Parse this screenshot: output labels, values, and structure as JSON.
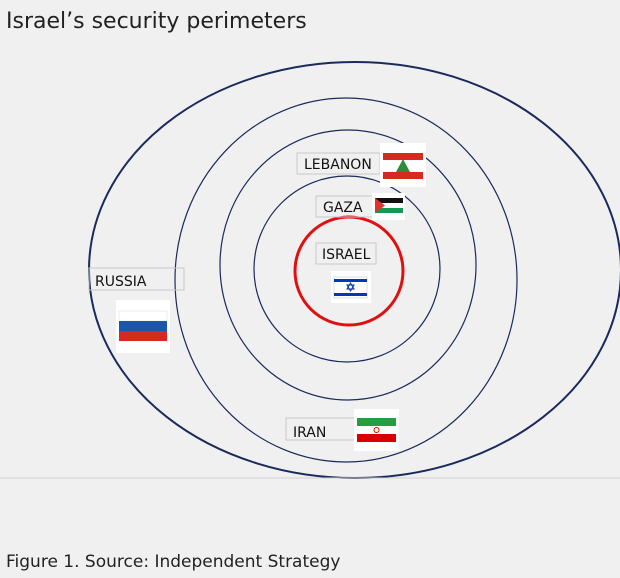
{
  "header": {
    "title": "Israel’s security perimeters"
  },
  "nodes": [
    {
      "label": "LEBANON"
    },
    {
      "label": "GAZA"
    },
    {
      "label": "ISRAEL"
    },
    {
      "label": "RUSSIA"
    },
    {
      "label": "IRAN"
    }
  ],
  "caption": "Figure 1. Source: Independent Strategy"
}
